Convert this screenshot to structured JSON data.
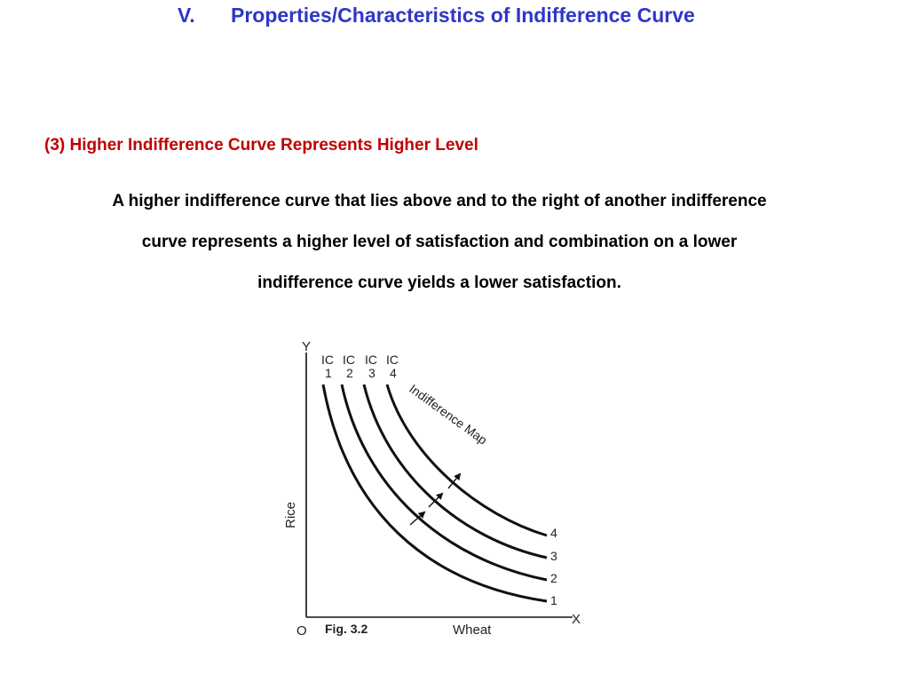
{
  "slide": {
    "number": "V.",
    "title": "Properties/Characteristics of Indifference Curve"
  },
  "section": {
    "heading": "(3) Higher Indifference Curve Represents Higher Level",
    "paragraph_lines": [
      "A higher indifference curve that lies above and to the right of another indifference",
      "curve represents a higher level of satisfaction and combination on a lower",
      "indifference curve yields a lower satisfaction."
    ]
  },
  "figure": {
    "y_axis_letter": "Y",
    "x_axis_letter": "X",
    "origin_label": "O",
    "caption": "Fig. 3.2",
    "y_axis_title": "Rice",
    "x_axis_title": "Wheat",
    "map_label": "Indifference Map",
    "curves": [
      {
        "top_label": "IC",
        "top_number": "1",
        "end_label": "1"
      },
      {
        "top_label": "IC",
        "top_number": "2",
        "end_label": "2"
      },
      {
        "top_label": "IC",
        "top_number": "3",
        "end_label": "3"
      },
      {
        "top_label": "IC",
        "top_number": "4",
        "end_label": "4"
      }
    ],
    "line_color": "#111111"
  }
}
